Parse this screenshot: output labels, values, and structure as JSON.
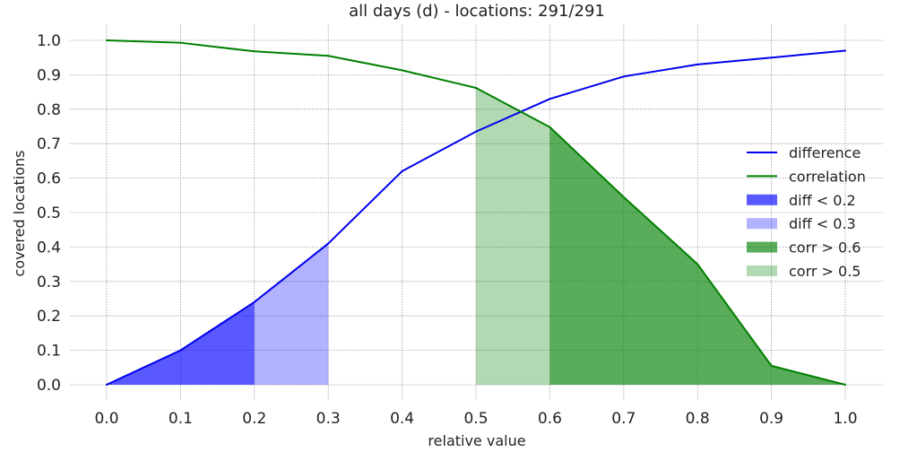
{
  "chart_data": {
    "type": "line",
    "title": "all days (d) - locations: 291/291",
    "xlabel": "relative value",
    "ylabel": "covered locations",
    "xlim": [
      0.0,
      1.0
    ],
    "ylim": [
      0.0,
      1.0
    ],
    "x_ticks": [
      "0.0",
      "0.1",
      "0.2",
      "0.3",
      "0.4",
      "0.5",
      "0.6",
      "0.7",
      "0.8",
      "0.9",
      "1.0"
    ],
    "y_ticks": [
      "0.0",
      "0.1",
      "0.2",
      "0.3",
      "0.4",
      "0.5",
      "0.6",
      "0.7",
      "0.8",
      "0.9",
      "1.0"
    ],
    "grid": true,
    "legend_position": "right",
    "x": [
      0.0,
      0.1,
      0.2,
      0.3,
      0.4,
      0.5,
      0.6,
      0.7,
      0.8,
      0.9,
      1.0
    ],
    "series": [
      {
        "name": "difference",
        "color": "#0000ee",
        "values": [
          0.0,
          0.1,
          0.24,
          0.41,
          0.62,
          0.735,
          0.83,
          0.895,
          0.93,
          0.95,
          0.97
        ]
      },
      {
        "name": "correlation",
        "color": "#008000",
        "values": [
          1.0,
          0.993,
          0.968,
          0.955,
          0.913,
          0.862,
          0.748,
          0.545,
          0.35,
          0.055,
          0.0
        ]
      }
    ],
    "fill_regions": [
      {
        "name": "diff < 0.2",
        "series": "difference",
        "x_range": [
          0.0,
          0.2
        ],
        "color": "#0000ff",
        "opacity": 0.65
      },
      {
        "name": "diff < 0.3",
        "series": "difference",
        "x_range": [
          0.2,
          0.3
        ],
        "color": "#0000ff",
        "opacity": 0.3
      },
      {
        "name": "corr > 0.6",
        "series": "correlation",
        "x_range": [
          0.6,
          1.0
        ],
        "color": "#008000",
        "opacity": 0.65
      },
      {
        "name": "corr > 0.5",
        "series": "correlation",
        "x_range": [
          0.5,
          0.6
        ],
        "color": "#008000",
        "opacity": 0.3
      }
    ],
    "legend": [
      "difference",
      "correlation",
      "diff < 0.2",
      "diff < 0.3",
      "corr > 0.6",
      "corr > 0.5"
    ]
  }
}
